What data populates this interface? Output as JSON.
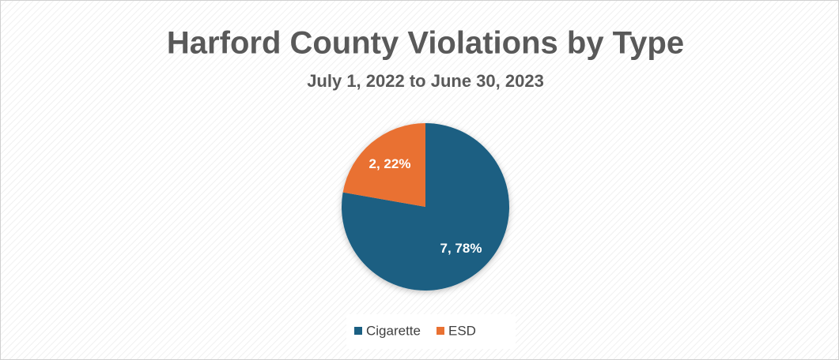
{
  "chart_data": {
    "type": "pie",
    "title": "Harford County Violations by Type",
    "subtitle": "July 1, 2022 to June 30, 2023",
    "categories": [
      "Cigarette",
      "ESD"
    ],
    "values": [
      7,
      2
    ],
    "value_labels": [
      "7, 78%",
      "2, 22%"
    ],
    "colors": [
      "#1b5f82",
      "#e97132"
    ],
    "legend": "bottom"
  }
}
